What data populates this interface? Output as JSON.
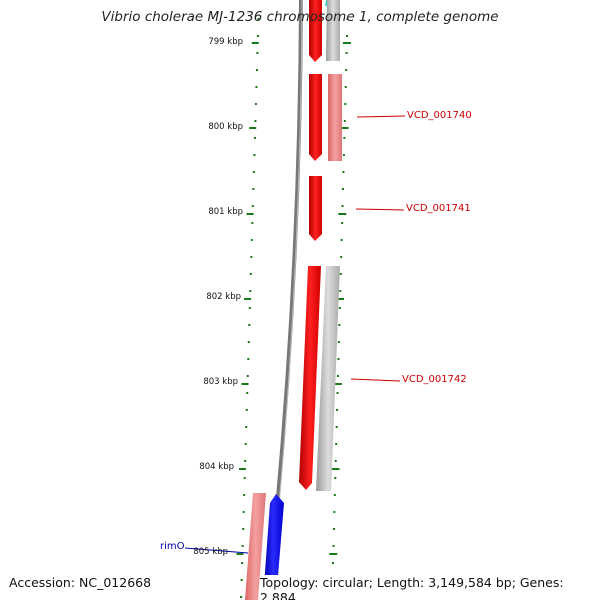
{
  "title": "Vibrio cholerae MJ-1236 chromosome 1, complete genome",
  "footer": {
    "accession": "Accession: NC_012668",
    "summary": "Topology: circular; Length: 3,149,584 bp; Genes: 2,884"
  },
  "ticks": [
    "799 kbp",
    "800 kbp",
    "801 kbp",
    "802 kbp",
    "803 kbp",
    "804 kbp",
    "805 kbp"
  ],
  "gene_labels": [
    {
      "id": "gene-label-vcd-001740",
      "text": "VCD_001740",
      "color": "red"
    },
    {
      "id": "gene-label-vcd-001741",
      "text": "VCD_001741",
      "color": "red"
    },
    {
      "id": "gene-label-vcd-001742",
      "text": "VCD_001742",
      "color": "red"
    },
    {
      "id": "gene-label-rimo",
      "text": "rimO",
      "color": "blue"
    }
  ],
  "colors": {
    "forward_cds": "#ff0000",
    "forward_cds_light": "#ee8888",
    "reverse_cds_gray": "#bbbbbb",
    "rim_gene": "#0000ee",
    "rim_gene_light": "#ee8888",
    "backbone": "#888888",
    "ticks": "#1a7a1a",
    "cyan_feature": "#33cccc"
  }
}
